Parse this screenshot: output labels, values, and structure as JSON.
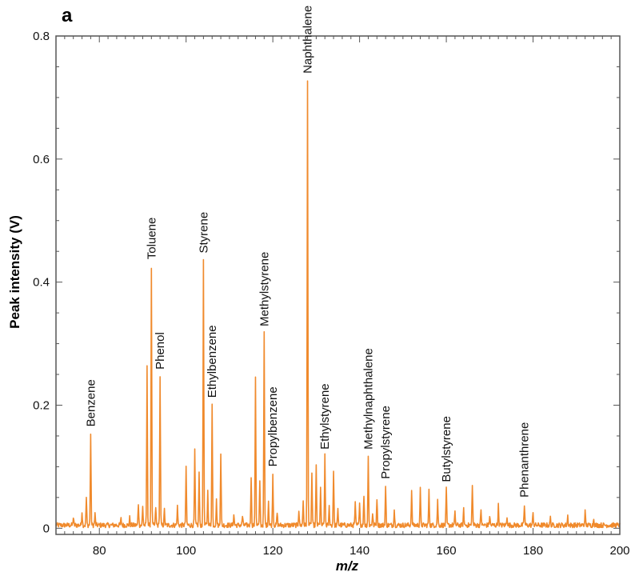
{
  "panel_label": "a",
  "chart_data": {
    "type": "line",
    "title": "",
    "xlabel": "m/z",
    "ylabel": "Peak intensity (V)",
    "xlim": [
      70,
      200
    ],
    "ylim": [
      -0.01,
      0.8
    ],
    "x_ticks": [
      80,
      100,
      120,
      140,
      160,
      180,
      200
    ],
    "y_ticks": [
      0,
      0.2,
      0.4,
      0.6,
      0.8
    ],
    "x_tick_labels": [
      "80",
      "100",
      "120",
      "140",
      "160",
      "180",
      "200"
    ],
    "y_tick_labels": [
      "0",
      "0.2",
      "0.4",
      "0.6",
      "0.8"
    ],
    "line_color": "#f08a2c",
    "grid": false,
    "baseline": 0.005,
    "peaks": [
      {
        "x": 74,
        "y": 0.012
      },
      {
        "x": 76,
        "y": 0.022
      },
      {
        "x": 77,
        "y": 0.045
      },
      {
        "x": 78,
        "y": 0.148
      },
      {
        "x": 79,
        "y": 0.018
      },
      {
        "x": 85,
        "y": 0.01
      },
      {
        "x": 87,
        "y": 0.012
      },
      {
        "x": 89,
        "y": 0.035
      },
      {
        "x": 90,
        "y": 0.03
      },
      {
        "x": 91,
        "y": 0.256
      },
      {
        "x": 92,
        "y": 0.42
      },
      {
        "x": 93,
        "y": 0.03
      },
      {
        "x": 94,
        "y": 0.243
      },
      {
        "x": 95,
        "y": 0.025
      },
      {
        "x": 98,
        "y": 0.03
      },
      {
        "x": 100,
        "y": 0.092
      },
      {
        "x": 102,
        "y": 0.12
      },
      {
        "x": 103,
        "y": 0.085
      },
      {
        "x": 104,
        "y": 0.432
      },
      {
        "x": 105,
        "y": 0.055
      },
      {
        "x": 106,
        "y": 0.196
      },
      {
        "x": 107,
        "y": 0.04
      },
      {
        "x": 108,
        "y": 0.118
      },
      {
        "x": 111,
        "y": 0.018
      },
      {
        "x": 113,
        "y": 0.015
      },
      {
        "x": 115,
        "y": 0.08
      },
      {
        "x": 116,
        "y": 0.243
      },
      {
        "x": 117,
        "y": 0.07
      },
      {
        "x": 118,
        "y": 0.312
      },
      {
        "x": 119,
        "y": 0.04
      },
      {
        "x": 120,
        "y": 0.082
      },
      {
        "x": 121,
        "y": 0.02
      },
      {
        "x": 126,
        "y": 0.025
      },
      {
        "x": 127,
        "y": 0.04
      },
      {
        "x": 128,
        "y": 0.722
      },
      {
        "x": 129,
        "y": 0.085
      },
      {
        "x": 130,
        "y": 0.095
      },
      {
        "x": 131,
        "y": 0.06
      },
      {
        "x": 132,
        "y": 0.112
      },
      {
        "x": 133,
        "y": 0.03
      },
      {
        "x": 134,
        "y": 0.09
      },
      {
        "x": 135,
        "y": 0.025
      },
      {
        "x": 139,
        "y": 0.035
      },
      {
        "x": 140,
        "y": 0.04
      },
      {
        "x": 141,
        "y": 0.05
      },
      {
        "x": 142,
        "y": 0.112
      },
      {
        "x": 143,
        "y": 0.02
      },
      {
        "x": 144,
        "y": 0.045
      },
      {
        "x": 146,
        "y": 0.063
      },
      {
        "x": 148,
        "y": 0.025
      },
      {
        "x": 152,
        "y": 0.055
      },
      {
        "x": 154,
        "y": 0.058
      },
      {
        "x": 156,
        "y": 0.055
      },
      {
        "x": 158,
        "y": 0.04
      },
      {
        "x": 160,
        "y": 0.058
      },
      {
        "x": 162,
        "y": 0.02
      },
      {
        "x": 164,
        "y": 0.025
      },
      {
        "x": 166,
        "y": 0.068
      },
      {
        "x": 168,
        "y": 0.025
      },
      {
        "x": 170,
        "y": 0.015
      },
      {
        "x": 172,
        "y": 0.032
      },
      {
        "x": 174,
        "y": 0.015
      },
      {
        "x": 178,
        "y": 0.033
      },
      {
        "x": 180,
        "y": 0.02
      },
      {
        "x": 184,
        "y": 0.012
      },
      {
        "x": 188,
        "y": 0.015
      },
      {
        "x": 192,
        "y": 0.022
      },
      {
        "x": 194,
        "y": 0.012
      }
    ],
    "annotations": [
      {
        "text": "Benzene",
        "x": 78,
        "y": 0.165
      },
      {
        "text": "Toluene",
        "x": 92,
        "y": 0.437
      },
      {
        "text": "Phenol",
        "x": 94,
        "y": 0.258
      },
      {
        "text": "Styrene",
        "x": 104,
        "y": 0.447
      },
      {
        "text": "Ethylbenzene",
        "x": 106,
        "y": 0.212
      },
      {
        "text": "Methylstyrene",
        "x": 118,
        "y": 0.328
      },
      {
        "text": "Propylbenzene",
        "x": 120,
        "y": 0.1
      },
      {
        "text": "Naphthalene",
        "x": 128,
        "y": 0.739
      },
      {
        "text": "Ethylstyrene",
        "x": 132,
        "y": 0.128
      },
      {
        "text": "Methylnaphthalene",
        "x": 142,
        "y": 0.128
      },
      {
        "text": "Propylstyrene",
        "x": 146,
        "y": 0.08
      },
      {
        "text": "Butylstyrene",
        "x": 160,
        "y": 0.075
      },
      {
        "text": "Phenanthrene",
        "x": 178,
        "y": 0.05
      }
    ]
  }
}
